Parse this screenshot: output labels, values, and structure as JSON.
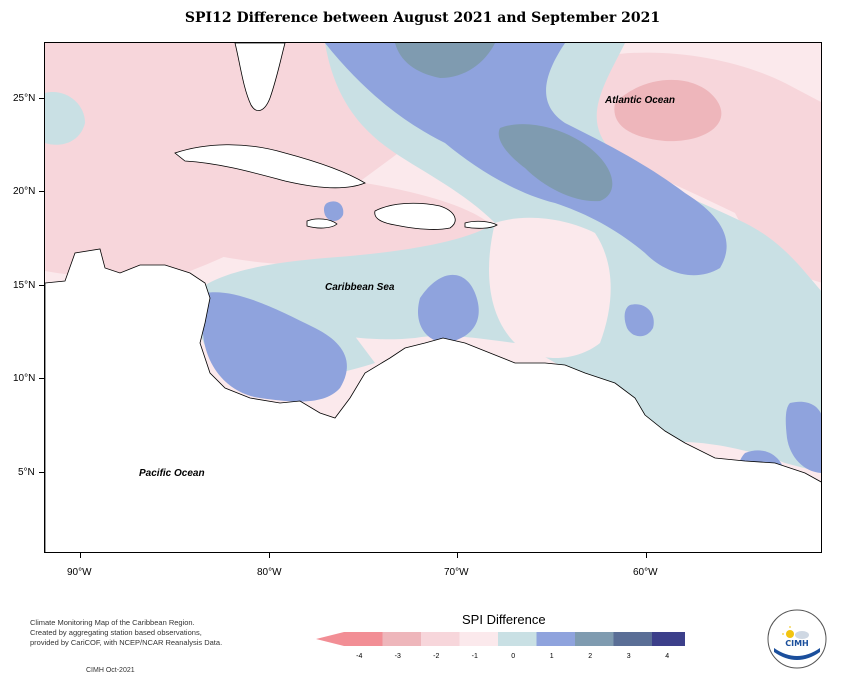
{
  "title": "SPI12 Difference between August 2021 and September 2021",
  "map": {
    "lat_labels": [
      "25°N",
      "20°N",
      "15°N",
      "10°N",
      "5°N"
    ],
    "lon_labels": [
      "90°W",
      "80°W",
      "70°W",
      "60°W"
    ],
    "place_labels": {
      "atlantic": "Atlantic Ocean",
      "caribbean": "Caribbean Sea",
      "pacific": "Pacific Ocean"
    }
  },
  "legend": {
    "title": "SPI Difference",
    "ticks": [
      "-4",
      "-3",
      "-2",
      "-1",
      "0",
      "1",
      "2",
      "3",
      "4"
    ],
    "colors": [
      "#f28e95",
      "#eeb6bb",
      "#f7d6db",
      "#fbe9ec",
      "#c9e0e4",
      "#8fa3dd",
      "#7f9bb0",
      "#5a6e96",
      "#3c3f8a"
    ]
  },
  "footer": {
    "lines": [
      "Climate Monitoring Map of the Caribbean Region.",
      "Created by aggregating station based observations,",
      "provided by CariCOF, with NCEP/NCAR Reanalysis Data."
    ],
    "credit": "CIMH Oct-2021"
  },
  "logo": {
    "text": "CIMH"
  }
}
